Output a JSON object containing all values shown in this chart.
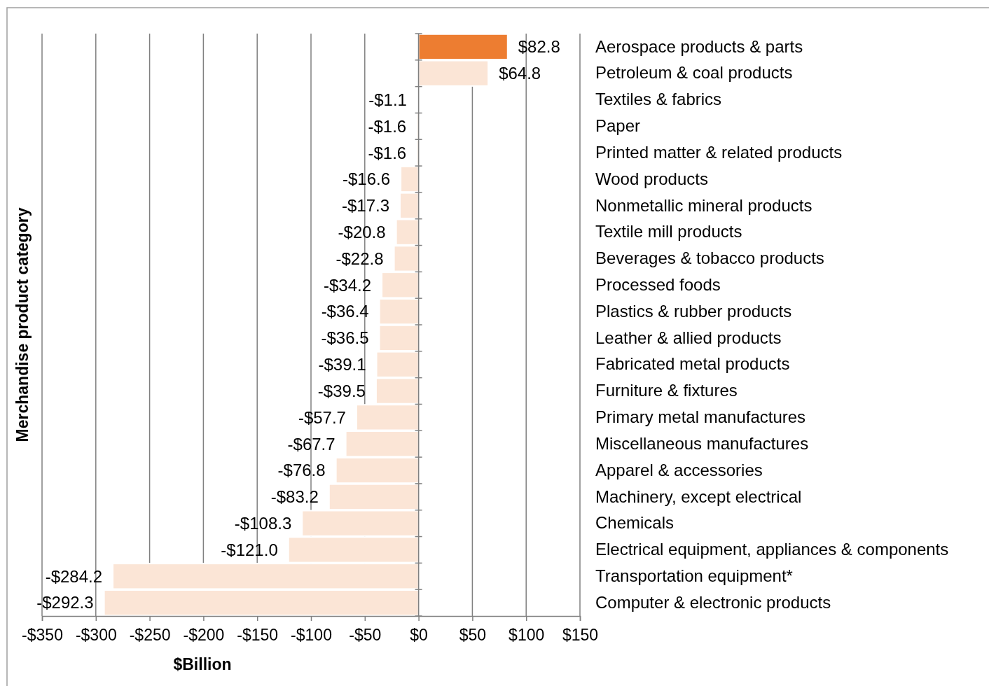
{
  "chart_data": {
    "type": "bar",
    "orientation": "horizontal",
    "xlabel": "$Billion",
    "ylabel": "Merchandise product category",
    "categories": [
      "Aerospace products & parts",
      "Petroleum & coal products",
      "Textiles & fabrics",
      "Paper",
      "Printed matter & related products",
      "Wood products",
      "Nonmetallic mineral products",
      "Textile mill products",
      "Beverages & tobacco products",
      "Processed foods",
      "Plastics & rubber products",
      "Leather & allied products",
      "Fabricated metal products",
      "Furniture & fixtures",
      "Primary metal manufactures",
      "Miscellaneous manufactures",
      "Apparel & accessories",
      "Machinery, except electrical",
      "Chemicals",
      "Electrical equipment, appliances & components",
      "Transportation equipment*",
      "Computer & electronic products"
    ],
    "values": [
      82.8,
      64.8,
      -1.1,
      -1.6,
      -1.6,
      -16.6,
      -17.3,
      -20.8,
      -22.8,
      -34.2,
      -36.4,
      -36.5,
      -39.1,
      -39.5,
      -57.7,
      -67.7,
      -76.8,
      -83.2,
      -108.3,
      -121.0,
      -284.2,
      -292.3
    ],
    "value_labels": [
      "$82.8",
      "$64.8",
      "-$1.1",
      "-$1.6",
      "-$1.6",
      "-$16.6",
      "-$17.3",
      "-$20.8",
      "-$22.8",
      "-$34.2",
      "-$36.4",
      "-$36.5",
      "-$39.1",
      "-$39.5",
      "-$57.7",
      "-$67.7",
      "-$76.8",
      "-$83.2",
      "-$108.3",
      "-$121.0",
      "-$284.2",
      "-$292.3"
    ],
    "colors": [
      "#ed7d31",
      "#fbe5d6",
      "#fbe5d6",
      "#fbe5d6",
      "#fbe5d6",
      "#fbe5d6",
      "#fbe5d6",
      "#fbe5d6",
      "#fbe5d6",
      "#fbe5d6",
      "#fbe5d6",
      "#fbe5d6",
      "#fbe5d6",
      "#fbe5d6",
      "#fbe5d6",
      "#fbe5d6",
      "#fbe5d6",
      "#fbe5d6",
      "#fbe5d6",
      "#fbe5d6",
      "#fbe5d6",
      "#fbe5d6"
    ],
    "xlim": [
      -350,
      150
    ],
    "xticks": [
      {
        "value": -350,
        "label": "-$350"
      },
      {
        "value": -300,
        "label": "-$300"
      },
      {
        "value": -250,
        "label": "-$250"
      },
      {
        "value": -200,
        "label": "-$200"
      },
      {
        "value": -150,
        "label": "-$150"
      },
      {
        "value": -100,
        "label": "-$100"
      },
      {
        "value": -50,
        "label": "-$50"
      },
      {
        "value": 0,
        "label": "$0"
      },
      {
        "value": 50,
        "label": "$50"
      },
      {
        "value": 100,
        "label": "$100"
      },
      {
        "value": 150,
        "label": "$150"
      }
    ],
    "grid": "x"
  }
}
